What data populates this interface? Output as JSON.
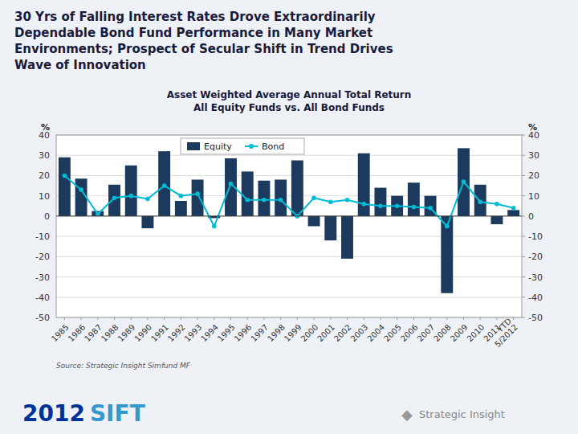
{
  "chart_data": {
    "type": "bar",
    "title": "30 Yrs of Falling Interest Rates Drove Extraordinarily\nDependable Bond Fund Performance in Many Market\nEnvironments; Prospect of Secular Shift in Trend Drives\nWave of Innovation",
    "subtitle": "Asset Weighted Average Annual Total Return\nAll Equity Funds vs. All Bond Funds",
    "y_label": "%",
    "y2_label": "%",
    "categories": [
      "1985",
      "1986",
      "1987",
      "1988",
      "1989",
      "1990",
      "1991",
      "1992",
      "1993",
      "1994",
      "1995",
      "1996",
      "1997",
      "1998",
      "1999",
      "2000",
      "2001",
      "2002",
      "2003",
      "2004",
      "2005",
      "2006",
      "2007",
      "2008",
      "2009",
      "2010",
      "2011",
      "YTD\n5/2012"
    ],
    "series": [
      {
        "name": "Equity",
        "type": "bar",
        "color": "#1c3a5e",
        "values": [
          29,
          18.5,
          2.5,
          15.5,
          25,
          -6,
          32,
          7.5,
          18,
          -1,
          28.5,
          22,
          17.5,
          18,
          27.5,
          -5,
          -12,
          -21,
          31,
          14,
          10,
          16.5,
          10,
          -38,
          33.5,
          15.5,
          -4,
          3
        ]
      },
      {
        "name": "Bond",
        "type": "line",
        "color": "#00bcd4",
        "marker": "circle",
        "values": [
          20,
          13,
          1,
          9,
          10,
          8.5,
          15,
          10,
          11,
          -5,
          16,
          8,
          8,
          8,
          0,
          9,
          7,
          8,
          6,
          5,
          5,
          4.5,
          4,
          -5,
          17,
          7,
          6,
          4
        ]
      }
    ],
    "ylim": [
      -50,
      40
    ],
    "yticks": [
      -50,
      -40,
      -30,
      -20,
      -10,
      0,
      10,
      20,
      30,
      40
    ],
    "y2lim": [
      -50,
      40
    ],
    "y2ticks": [
      -50,
      -40,
      -30,
      -20,
      -10,
      0,
      10,
      20,
      30,
      40
    ],
    "grid": true,
    "legend": "top",
    "annotations": [
      {
        "text": "Source: Strategic Insight Simfund MF"
      },
      {
        "text": "2012",
        "color": "#003399"
      },
      {
        "text": "SIFT",
        "color": "#3399cc"
      },
      {
        "text": "◆",
        "color": "#999999"
      },
      {
        "text": "Strategic Insight",
        "color": "#888888"
      }
    ]
  }
}
